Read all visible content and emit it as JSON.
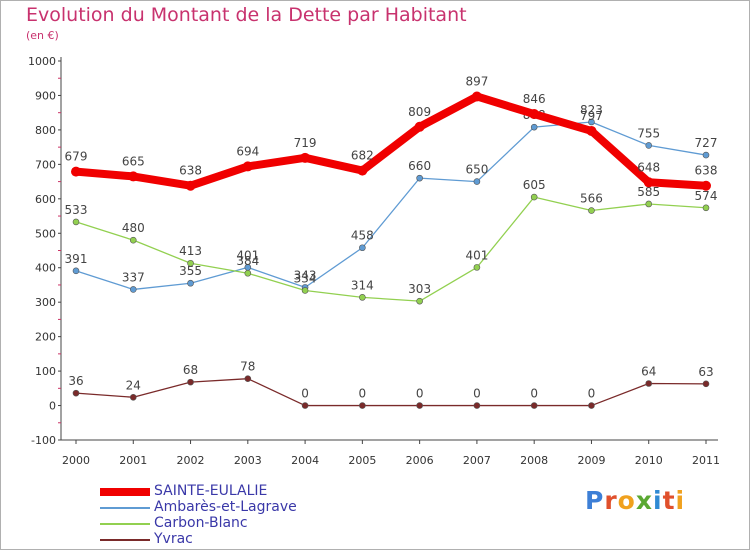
{
  "title": "Evolution du Montant de la Dette par Habitant",
  "unit": "(en €)",
  "logo": {
    "text": "Proxiti",
    "colors": [
      "#3d7fd6",
      "#e0502c",
      "#f0a11e",
      "#5aa832",
      "#2f8ad3",
      "#e0502c",
      "#f0a11e"
    ]
  },
  "chart_data": {
    "type": "line",
    "x": [
      "2000",
      "2001",
      "2002",
      "2003",
      "2004",
      "2005",
      "2006",
      "2007",
      "2008",
      "2009",
      "2010",
      "2011"
    ],
    "ylim": [
      -100,
      1000
    ],
    "yticks": [
      -100,
      0,
      100,
      200,
      300,
      400,
      500,
      600,
      700,
      800,
      900,
      1000
    ],
    "grid": false,
    "legend_position": "bottom-left",
    "series": [
      {
        "name": "SAINTE-EULALIE",
        "color": "#f00000",
        "width": 8,
        "values": [
          679,
          665,
          638,
          694,
          719,
          682,
          809,
          897,
          846,
          797,
          648,
          638
        ]
      },
      {
        "name": "Ambarès-et-Lagrave",
        "color": "#5f9bd3",
        "width": 1.3,
        "values": [
          391,
          337,
          355,
          401,
          343,
          458,
          660,
          650,
          808,
          823,
          755,
          727
        ]
      },
      {
        "name": "Carbon-Blanc",
        "color": "#92d050",
        "width": 1.3,
        "values": [
          533,
          480,
          413,
          384,
          334,
          314,
          303,
          401,
          605,
          566,
          585,
          574
        ]
      },
      {
        "name": "Yvrac",
        "color": "#7a2a2a",
        "width": 1.3,
        "values": [
          36,
          24,
          68,
          78,
          0,
          0,
          0,
          0,
          0,
          0,
          64,
          63
        ]
      }
    ]
  }
}
